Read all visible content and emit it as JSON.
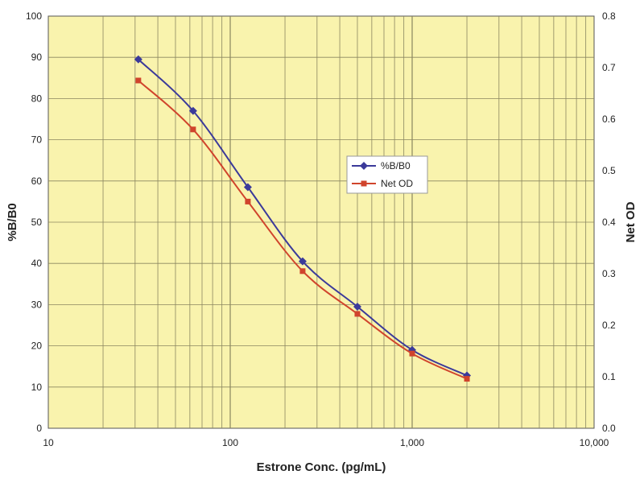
{
  "chart_data": {
    "type": "line",
    "title": "",
    "xlabel": "Estrone Conc. (pg/mL)",
    "ylabel": "%B/B0",
    "y2label": "Net OD",
    "x_scale": "log",
    "xlim": [
      10,
      10000
    ],
    "ylim": [
      0,
      100
    ],
    "y2lim": [
      0,
      0.8
    ],
    "x_ticks": [
      10,
      100,
      1000,
      10000
    ],
    "x_tick_labels": [
      "10",
      "100",
      "1,000",
      "10,000"
    ],
    "y_ticks": [
      0,
      10,
      20,
      30,
      40,
      50,
      60,
      70,
      80,
      90,
      100
    ],
    "y_tick_labels": [
      "0",
      "10",
      "20",
      "30",
      "40",
      "50",
      "60",
      "70",
      "80",
      "90",
      "100"
    ],
    "y2_ticks": [
      0,
      0.1,
      0.2,
      0.3,
      0.4,
      0.5,
      0.6,
      0.7,
      0.8
    ],
    "y2_tick_labels": [
      "0.0",
      "0.1",
      "0.2",
      "0.3",
      "0.4",
      "0.5",
      "0.6",
      "0.7",
      "0.8"
    ],
    "grid": true,
    "legend_position": "center-right",
    "background_color": "#f9f3ad",
    "x": [
      31.25,
      62.5,
      125,
      250,
      500,
      1000,
      2000
    ],
    "series": [
      {
        "name": "%B/B0",
        "axis": "left",
        "color": "#3b3a9a",
        "marker": "diamond",
        "values": [
          89.5,
          77.0,
          58.5,
          40.5,
          29.5,
          19.0,
          12.8
        ]
      },
      {
        "name": "Net OD",
        "axis": "right",
        "color": "#d0442c",
        "marker": "square",
        "values": [
          0.675,
          0.58,
          0.44,
          0.305,
          0.222,
          0.145,
          0.096
        ]
      }
    ]
  }
}
